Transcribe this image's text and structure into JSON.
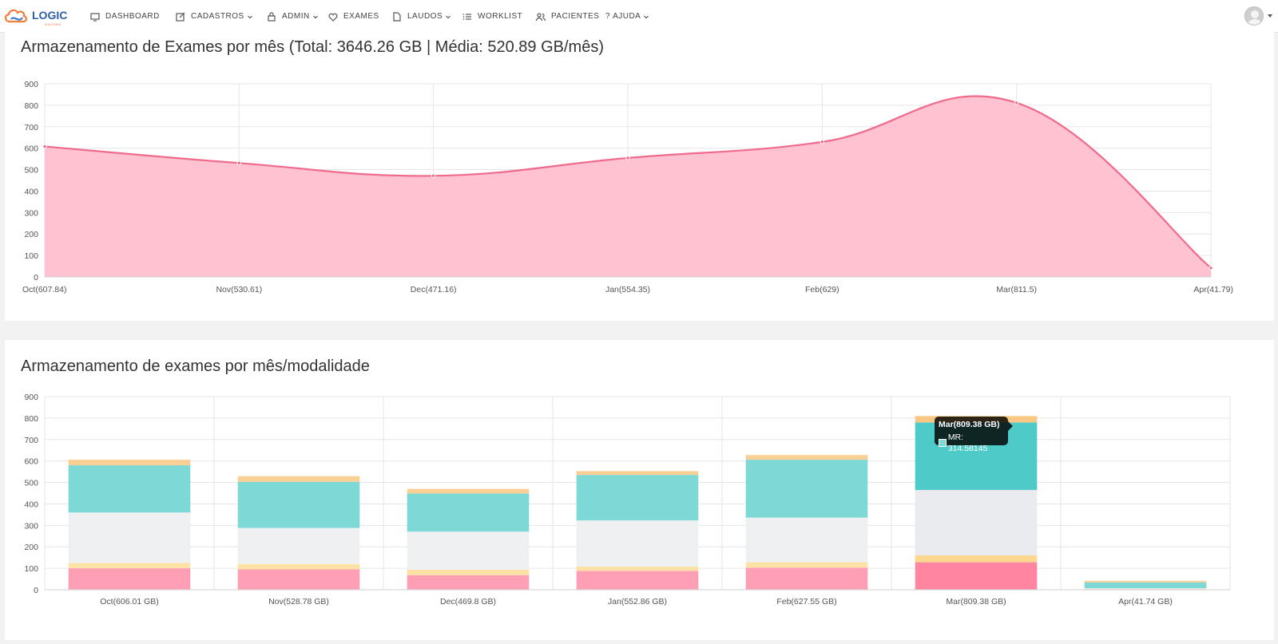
{
  "nav": {
    "logo_text": "LOGIC",
    "logo_sub": "SOLUTIONS",
    "items": [
      {
        "label": "DASHBOARD",
        "icon": "monitor-icon",
        "dropdown": false
      },
      {
        "label": "CADASTROS",
        "icon": "edit-icon",
        "dropdown": true
      },
      {
        "label": "ADMIN",
        "icon": "lock-icon",
        "dropdown": true
      },
      {
        "label": "EXAMES",
        "icon": "heart-icon",
        "dropdown": false
      },
      {
        "label": "LAUDOS",
        "icon": "file-icon",
        "dropdown": true
      },
      {
        "label": "WORKLIST",
        "icon": "list-icon",
        "dropdown": false
      },
      {
        "label": "PACIENTES",
        "icon": "users-icon",
        "dropdown": false
      },
      {
        "label": "AJUDA",
        "icon": "question-icon",
        "dropdown": true
      }
    ]
  },
  "colors": {
    "area_fill": "#ffc2d1",
    "area_line": "#f06a8c",
    "mod_pink": "#ff9fb5",
    "mod_yellow": "#fde2a6",
    "mod_gray": "#eef0f2",
    "mod_teal": "#7ed9d6",
    "mod_orange": "#f9cf93"
  },
  "chart_data": [
    {
      "type": "area",
      "title": "Armazenamento de Exames por mês (Total: 3646.26 GB | Média: 520.89 GB/mês)",
      "categories": [
        "Oct(607.84)",
        "Nov(530.61)",
        "Dec(471.16)",
        "Jan(554.35)",
        "Feb(629)",
        "Mar(811.5)",
        "Apr(41.79)"
      ],
      "values": [
        607.84,
        530.61,
        471.16,
        554.35,
        629,
        811.5,
        41.79
      ],
      "yticks": [
        0,
        100,
        200,
        300,
        400,
        500,
        600,
        700,
        800,
        900
      ],
      "ylim": [
        0,
        900
      ],
      "grid": true
    },
    {
      "type": "bar",
      "stacked": true,
      "title": "Armazenamento de exames por mês/modalidade",
      "categories": [
        "Oct(606.01 GB)",
        "Nov(528.78 GB)",
        "Dec(469.8 GB)",
        "Jan(552.86 GB)",
        "Feb(627.55 GB)",
        "Mar(809.38 GB)",
        "Apr(41.74 GB)"
      ],
      "series": [
        {
          "name": "",
          "color": "#ff9fb5",
          "values": [
            100,
            95,
            68,
            88,
            103,
            128,
            3
          ]
        },
        {
          "name": "",
          "color": "#fde2a6",
          "values": [
            25,
            25,
            25,
            20,
            25,
            32,
            1
          ]
        },
        {
          "name": "",
          "color": "#eef0f2",
          "values": [
            235,
            168,
            178,
            215,
            208,
            305,
            3
          ]
        },
        {
          "name": "MR",
          "color": "#7ed9d6",
          "values": [
            220,
            215,
            178,
            212,
            270,
            314.58145,
            27
          ]
        },
        {
          "name": "",
          "color": "#f9cf93",
          "values": [
            26,
            25.78,
            20.8,
            17.86,
            21.55,
            29.8,
            7.74
          ]
        }
      ],
      "yticks": [
        0,
        100,
        200,
        300,
        400,
        500,
        600,
        700,
        800,
        900
      ],
      "ylim": [
        0,
        900
      ],
      "grid": true,
      "tooltip": {
        "title": "Mar(809.38 GB)",
        "label": "MR: 314.58145",
        "color": "#7ed9d6"
      }
    }
  ]
}
